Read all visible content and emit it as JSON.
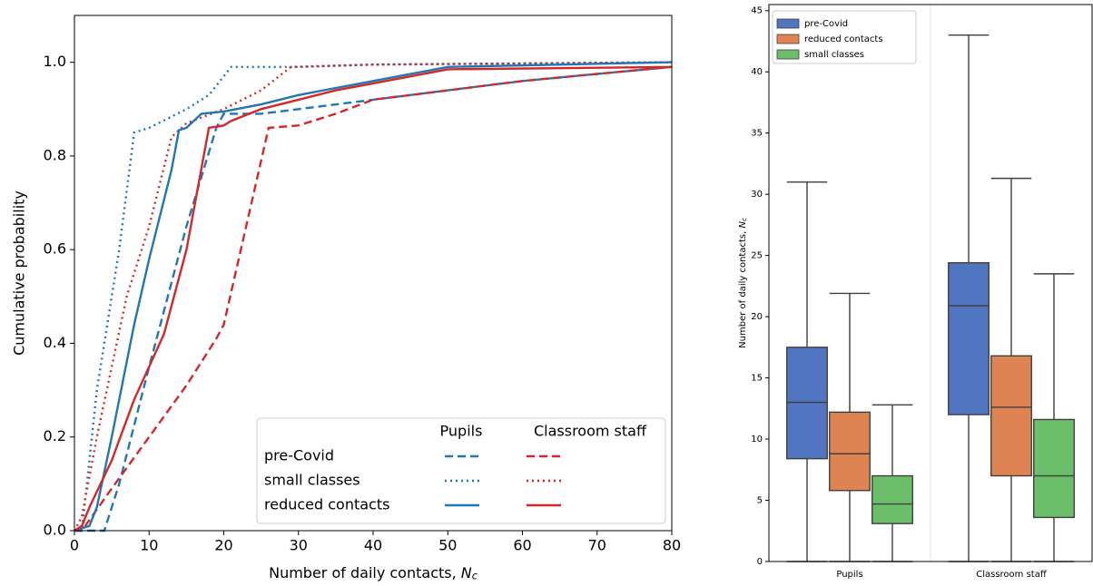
{
  "chart_data": [
    {
      "type": "line",
      "ylabel": "Cumulative probability",
      "xlabel": {
        "text": "Number of daily contacts, ",
        "symbol": "N",
        "subscript": "c"
      },
      "xlim": [
        0,
        80
      ],
      "ylim": [
        0,
        1.1
      ],
      "xticks": [
        0,
        10,
        20,
        30,
        40,
        50,
        60,
        70,
        80
      ],
      "yticks": [
        {
          "value": 0,
          "label": "0.0"
        },
        0.2,
        0.4,
        0.6,
        0.8,
        {
          "value": 1,
          "label": "1.0"
        }
      ],
      "columns": [
        {
          "name": "Pupils",
          "color": "#1f77b4"
        },
        {
          "name": "Classroom staff",
          "color": "#d62728"
        }
      ],
      "series": [
        {
          "name": "pre-Covid",
          "linestyle": "dashed",
          "lines": [
            {
              "x": [
                0,
                4,
                6,
                10,
                15,
                19,
                20,
                25,
                30,
                40,
                50,
                60,
                70,
                80
              ],
              "y": [
                0,
                0,
                0.1,
                0.35,
                0.65,
                0.86,
                0.89,
                0.89,
                0.9,
                0.92,
                0.94,
                0.96,
                0.975,
                0.99
              ]
            },
            {
              "x": [
                0,
                1,
                5,
                10,
                15,
                19,
                20,
                23,
                26,
                30,
                35,
                40,
                50,
                60,
                70,
                80
              ],
              "y": [
                0,
                0,
                0.09,
                0.2,
                0.31,
                0.41,
                0.44,
                0.65,
                0.86,
                0.865,
                0.89,
                0.92,
                0.94,
                0.96,
                0.975,
                0.99
              ]
            }
          ]
        },
        {
          "name": "small classes",
          "linestyle": "dotted",
          "lines": [
            {
              "x": [
                0,
                1,
                3,
                6,
                8,
                10,
                15,
                18,
                21,
                30,
                40,
                80
              ],
              "y": [
                0,
                0,
                0.3,
                0.6,
                0.85,
                0.86,
                0.9,
                0.93,
                0.99,
                0.99,
                0.995,
                1.0
              ]
            },
            {
              "x": [
                0,
                1,
                3,
                5,
                7,
                10,
                13,
                15,
                20,
                25,
                29,
                40,
                80
              ],
              "y": [
                0,
                0.03,
                0.2,
                0.35,
                0.5,
                0.65,
                0.84,
                0.87,
                0.9,
                0.94,
                0.99,
                0.995,
                1.0
              ]
            }
          ]
        },
        {
          "name": "reduced contacts",
          "linestyle": "solid",
          "lines": [
            {
              "x": [
                0,
                2,
                3,
                5,
                8,
                10,
                13,
                14,
                15,
                17,
                20,
                25,
                30,
                35,
                40,
                50,
                80
              ],
              "y": [
                0,
                0.01,
                0.05,
                0.2,
                0.44,
                0.58,
                0.77,
                0.855,
                0.86,
                0.89,
                0.895,
                0.91,
                0.93,
                0.945,
                0.96,
                0.99,
                1.0
              ]
            },
            {
              "x": [
                0,
                1,
                2,
                5,
                8,
                12,
                15,
                18,
                20,
                21,
                25,
                30,
                35,
                40,
                50,
                80
              ],
              "y": [
                0,
                0.01,
                0.05,
                0.15,
                0.28,
                0.42,
                0.6,
                0.86,
                0.865,
                0.875,
                0.9,
                0.92,
                0.94,
                0.955,
                0.985,
                0.99
              ]
            }
          ]
        }
      ]
    },
    {
      "type": "box",
      "ylabel": {
        "text": "Number of daily contacts, ",
        "symbol": "N",
        "subscript": "c"
      },
      "categories": [
        "Pupils",
        "Classroom staff"
      ],
      "ylim": [
        0,
        45.5
      ],
      "yticks": [
        0,
        5,
        10,
        15,
        20,
        25,
        30,
        35,
        40,
        45
      ],
      "series": [
        {
          "name": "pre-Covid",
          "color": "#5175c0",
          "whislo": [
            0,
            0
          ],
          "q1": [
            8.4,
            12
          ],
          "median": [
            13,
            20.9
          ],
          "q3": [
            17.5,
            24.4
          ],
          "whishi": [
            31,
            43
          ]
        },
        {
          "name": "reduced contacts",
          "color": "#dd8452",
          "whislo": [
            0,
            0
          ],
          "q1": [
            5.8,
            7.0
          ],
          "median": [
            8.8,
            12.6
          ],
          "q3": [
            12.2,
            16.8
          ],
          "whishi": [
            21.9,
            31.3
          ]
        },
        {
          "name": "small classes",
          "color": "#6bbf6b",
          "whislo": [
            0,
            0
          ],
          "q1": [
            3.1,
            3.6
          ],
          "median": [
            4.7,
            7.0
          ],
          "q3": [
            7.0,
            11.6
          ],
          "whishi": [
            12.8,
            23.5
          ]
        }
      ]
    }
  ]
}
